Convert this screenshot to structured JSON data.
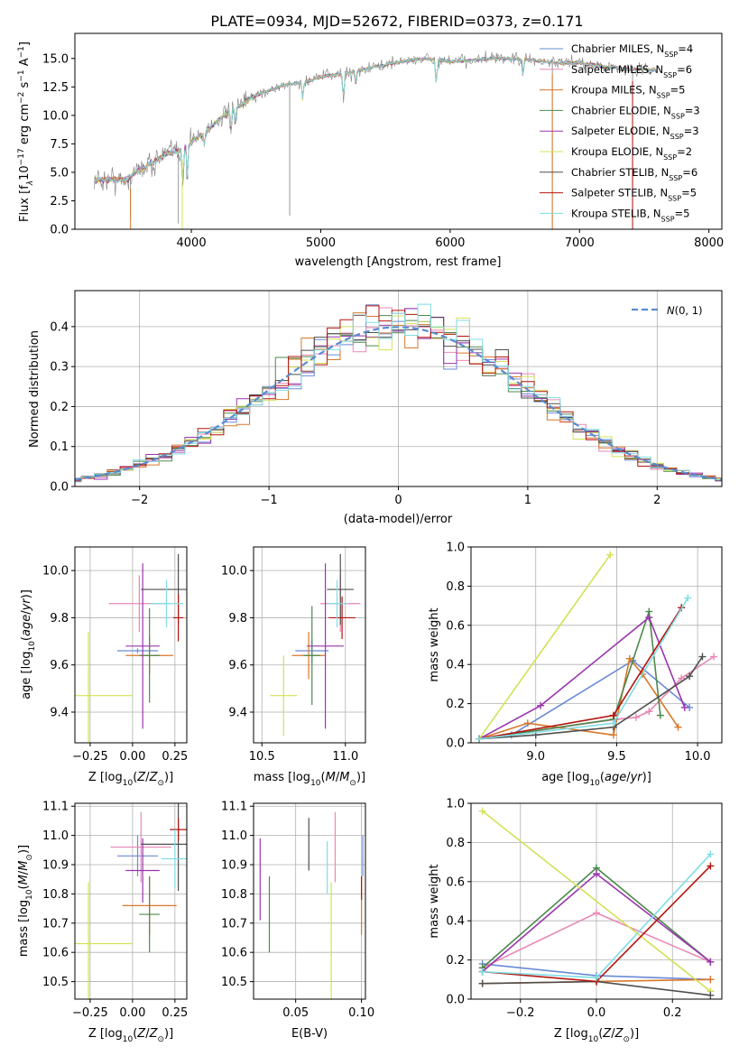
{
  "title": "PLATE=0934, MJD=52672, FIBERID=0373, z=0.171",
  "models": [
    {
      "name": "Chabrier MILES, N",
      "sub": "SSP",
      "n": "=4",
      "color": "#6a8ad6"
    },
    {
      "name": "Salpeter MILES, N",
      "sub": "SSP",
      "n": "=6",
      "color": "#e988b6"
    },
    {
      "name": "Kroupa MILES, N",
      "sub": "SSP",
      "n": "=5",
      "color": "#d9772a"
    },
    {
      "name": "Chabrier ELODIE, N",
      "sub": "SSP",
      "n": "=3",
      "color": "#4d8a4d"
    },
    {
      "name": "Salpeter ELODIE, N",
      "sub": "SSP",
      "n": "=3",
      "color": "#9a35ad"
    },
    {
      "name": "Kroupa ELODIE, N",
      "sub": "SSP",
      "n": "=2",
      "color": "#d4e157"
    },
    {
      "name": "Chabrier STELIB, N",
      "sub": "SSP",
      "n": "=6",
      "color": "#4f4f4f"
    },
    {
      "name": "Salpeter STELIB, N",
      "sub": "SSP",
      "n": "=5",
      "color": "#b3140f"
    },
    {
      "name": "Kroupa STELIB, N",
      "sub": "SSP",
      "n": "=5",
      "color": "#7fdde3"
    }
  ],
  "chart_data": [
    {
      "type": "line",
      "id": "spectrum",
      "xlabel": "wavelength [Angstrom, rest frame]",
      "ylabel": "Flux [f",
      "xlim": [
        3100,
        8100
      ],
      "ylim": [
        0,
        17.2
      ],
      "xticks": [
        4000,
        5000,
        6000,
        7000,
        8000
      ],
      "yticks": [
        0.0,
        2.5,
        5.0,
        7.5,
        10.0,
        12.5,
        15.0
      ],
      "continuum": {
        "x": [
          3250,
          3400,
          3500,
          3600,
          3700,
          3800,
          3900,
          4000,
          4100,
          4200,
          4300,
          4400,
          4500,
          4600,
          4700,
          4800,
          4900,
          5000,
          5200,
          5400,
          5600,
          5800,
          6000,
          6200,
          6400,
          6600,
          6800,
          7000,
          7200,
          7400,
          7600
        ],
        "y": [
          4.3,
          4.4,
          4.3,
          5.3,
          5.8,
          6.6,
          6.9,
          7.7,
          8.5,
          9.5,
          10.4,
          11.0,
          11.8,
          12.2,
          12.6,
          12.8,
          13.0,
          13.4,
          13.7,
          14.2,
          14.7,
          15.0,
          14.7,
          14.9,
          15.0,
          14.9,
          14.6,
          14.6,
          14.3,
          14.0,
          14.0
        ]
      }
    },
    {
      "type": "bar",
      "id": "residuals",
      "xlabel": "(data-model)/error",
      "ylabel": "Normed distribution",
      "xlim": [
        -2.5,
        2.5
      ],
      "ylim": [
        0,
        0.49
      ],
      "xticks": [
        -2,
        -1,
        0,
        1,
        2
      ],
      "yticks": [
        0.0,
        0.1,
        0.2,
        0.3,
        0.4
      ],
      "bin_width": 0.1,
      "legend": "N(0, 1)"
    },
    {
      "type": "scatter",
      "id": "age_vs_Z",
      "xlabel": "Z [log",
      "ylabel": "age [log",
      "xlim": [
        -0.34,
        0.32
      ],
      "ylim": [
        9.27,
        10.1
      ],
      "xticks": [
        -0.25,
        0.0,
        0.25
      ],
      "yticks": [
        9.4,
        9.6,
        9.8,
        10.0
      ],
      "points": [
        {
          "x": 0.03,
          "y": 9.66,
          "xerr": 0.12,
          "yerr": 0.01
        },
        {
          "x": 0.04,
          "y": 9.86,
          "xerr": 0.18,
          "yerr": 0.12
        },
        {
          "x": 0.1,
          "y": 9.64,
          "xerr": 0.14,
          "yerr": 0.08
        },
        {
          "x": 0.1,
          "y": 9.64,
          "xerr": 0.06,
          "yerr": 0.2
        },
        {
          "x": 0.06,
          "y": 9.68,
          "xerr": 0.1,
          "yerr": 0.35
        },
        {
          "x": -0.26,
          "y": 9.47,
          "xerr": 0.26,
          "yerr": 0.27
        },
        {
          "x": 0.27,
          "y": 9.92,
          "xerr": 0.22,
          "yerr": 0.15
        },
        {
          "x": 0.27,
          "y": 9.8,
          "xerr": 0.03,
          "yerr": 0.1
        },
        {
          "x": 0.2,
          "y": 9.86,
          "xerr": 0.1,
          "yerr": 0.1
        }
      ]
    },
    {
      "type": "scatter",
      "id": "age_vs_mass",
      "xlabel": "mass [log",
      "ylabel": "",
      "xlim": [
        10.45,
        11.12
      ],
      "ylim": [
        9.27,
        10.1
      ],
      "xticks": [
        10.5,
        11.0
      ],
      "yticks": [
        9.4,
        9.6,
        9.8,
        10.0
      ],
      "points": [
        {
          "x": 10.8,
          "y": 9.66,
          "xerr": 0.1,
          "yerr": 0.05
        },
        {
          "x": 10.97,
          "y": 9.86,
          "xerr": 0.12,
          "yerr": 0.12
        },
        {
          "x": 10.78,
          "y": 9.64,
          "xerr": 0.1,
          "yerr": 0.1
        },
        {
          "x": 10.8,
          "y": 9.64,
          "xerr": 0.05,
          "yerr": 0.21
        },
        {
          "x": 10.88,
          "y": 9.68,
          "xerr": 0.11,
          "yerr": 0.35
        },
        {
          "x": 10.63,
          "y": 9.47,
          "xerr": 0.08,
          "yerr": 0.17
        },
        {
          "x": 10.97,
          "y": 9.92,
          "xerr": 0.08,
          "yerr": 0.15
        },
        {
          "x": 10.98,
          "y": 9.8,
          "xerr": 0.08,
          "yerr": 0.09
        },
        {
          "x": 10.95,
          "y": 9.86,
          "xerr": 0.06,
          "yerr": 0.1
        }
      ]
    },
    {
      "type": "line",
      "id": "weight_vs_age",
      "xlabel": "age [log",
      "ylabel": "mass weight",
      "xlim": [
        8.6,
        10.15
      ],
      "ylim": [
        0,
        1.0
      ],
      "xticks": [
        9.0,
        9.5,
        10.0
      ],
      "yticks": [
        0.0,
        0.2,
        0.4,
        0.6,
        0.8,
        1.0
      ],
      "series": [
        {
          "x": [
            8.65,
            8.85,
            9.6,
            9.95
          ],
          "y": [
            0.02,
            0.04,
            0.42,
            0.18
          ]
        },
        {
          "x": [
            8.65,
            9.5,
            9.62,
            9.7,
            9.9,
            10.1
          ],
          "y": [
            0.02,
            0.12,
            0.13,
            0.16,
            0.33,
            0.44
          ]
        },
        {
          "x": [
            8.65,
            8.95,
            9.48,
            9.58,
            9.66,
            9.88
          ],
          "y": [
            0.02,
            0.1,
            0.04,
            0.43,
            0.35,
            0.08
          ]
        },
        {
          "x": [
            8.65,
            9.48,
            9.7,
            9.77
          ],
          "y": [
            0.02,
            0.12,
            0.67,
            0.14
          ]
        },
        {
          "x": [
            8.65,
            9.03,
            9.7,
            9.92
          ],
          "y": [
            0.02,
            0.19,
            0.64,
            0.18
          ]
        },
        {
          "x": [
            8.65,
            9.46
          ],
          "y": [
            0.02,
            0.96
          ]
        },
        {
          "x": [
            8.65,
            9.0,
            9.48,
            9.95,
            10.03
          ],
          "y": [
            0.02,
            0.04,
            0.08,
            0.34,
            0.44
          ]
        },
        {
          "x": [
            8.65,
            9.48,
            9.9
          ],
          "y": [
            0.02,
            0.14,
            0.69
          ]
        },
        {
          "x": [
            8.65,
            9.48,
            9.94
          ],
          "y": [
            0.02,
            0.1,
            0.74
          ]
        }
      ]
    },
    {
      "type": "scatter",
      "id": "mass_vs_Z",
      "xlabel": "Z [log",
      "ylabel": "mass [log",
      "xlim": [
        -0.34,
        0.32
      ],
      "ylim": [
        10.44,
        11.11
      ],
      "xticks": [
        -0.25,
        0.0,
        0.25
      ],
      "yticks": [
        10.5,
        10.6,
        10.7,
        10.8,
        10.9,
        11.0,
        11.1
      ],
      "points": [
        {
          "x": 0.03,
          "y": 10.93,
          "xerr": 0.12,
          "yerr": 0.07
        },
        {
          "x": 0.05,
          "y": 10.96,
          "xerr": 0.18,
          "yerr": 0.12
        },
        {
          "x": 0.1,
          "y": 10.76,
          "xerr": 0.16,
          "yerr": 0.1
        },
        {
          "x": 0.1,
          "y": 10.73,
          "xerr": 0.06,
          "yerr": 0.13
        },
        {
          "x": 0.06,
          "y": 10.88,
          "xerr": 0.1,
          "yerr": 0.11
        },
        {
          "x": -0.26,
          "y": 10.63,
          "xerr": 0.26,
          "yerr": 0.21
        },
        {
          "x": 0.27,
          "y": 10.97,
          "xerr": 0.22,
          "yerr": 0.16
        },
        {
          "x": 0.27,
          "y": 11.02,
          "xerr": 0.05,
          "yerr": 0.04
        },
        {
          "x": 0.25,
          "y": 10.92,
          "xerr": 0.08,
          "yerr": 0.1
        }
      ]
    },
    {
      "type": "scatter",
      "id": "mass_vs_ebv",
      "xlabel": "E(B-V)",
      "ylabel": "",
      "xlim": [
        0.018,
        0.103
      ],
      "ylim": [
        10.44,
        11.11
      ],
      "xticks": [
        0.05,
        0.1
      ],
      "yticks": [
        10.5,
        10.6,
        10.7,
        10.8,
        10.9,
        11.0,
        11.1
      ],
      "points": [
        {
          "x": 0.101,
          "y": 10.93,
          "yerr": 0.07
        },
        {
          "x": 0.08,
          "y": 10.96,
          "yerr": 0.12
        },
        {
          "x": 0.1,
          "y": 10.76,
          "yerr": 0.1
        },
        {
          "x": 0.03,
          "y": 10.73,
          "yerr": 0.13
        },
        {
          "x": 0.023,
          "y": 10.85,
          "yerr": 0.14
        },
        {
          "x": 0.077,
          "y": 10.63,
          "yerr": 0.21
        },
        {
          "x": 0.06,
          "y": 10.97,
          "yerr": 0.09
        },
        {
          "x": 0.1,
          "y": 10.82,
          "yerr": 0.04
        },
        {
          "x": 0.074,
          "y": 10.89,
          "yerr": 0.09
        }
      ]
    },
    {
      "type": "line",
      "id": "weight_vs_Z",
      "xlabel": "Z [log",
      "ylabel": "mass weight",
      "xlim": [
        -0.33,
        0.33
      ],
      "ylim": [
        0,
        1.0
      ],
      "xticks": [
        -0.2,
        0.0,
        0.2
      ],
      "yticks": [
        0.0,
        0.2,
        0.4,
        0.6,
        0.8,
        1.0
      ],
      "series": [
        {
          "x": [
            -0.3,
            0.0,
            0.3
          ],
          "y": [
            0.18,
            0.12,
            0.1
          ]
        },
        {
          "x": [
            -0.3,
            0.0,
            0.3
          ],
          "y": [
            0.16,
            0.44,
            0.19
          ]
        },
        {
          "x": [
            -0.3,
            0.0,
            0.3
          ],
          "y": [
            0.08,
            0.09,
            0.1
          ]
        },
        {
          "x": [
            -0.3,
            0.0,
            0.3
          ],
          "y": [
            0.16,
            0.67,
            0.19
          ]
        },
        {
          "x": [
            -0.3,
            0.0,
            0.3
          ],
          "y": [
            0.14,
            0.64,
            0.19
          ]
        },
        {
          "x": [
            -0.3,
            0.3
          ],
          "y": [
            0.96,
            0.04
          ]
        },
        {
          "x": [
            -0.3,
            0.0,
            0.3
          ],
          "y": [
            0.08,
            0.09,
            0.02
          ]
        },
        {
          "x": [
            -0.3,
            0.0,
            0.3
          ],
          "y": [
            0.14,
            0.09,
            0.68
          ]
        },
        {
          "x": [
            -0.3,
            0.0,
            0.3
          ],
          "y": [
            0.14,
            0.11,
            0.74
          ]
        }
      ]
    }
  ]
}
